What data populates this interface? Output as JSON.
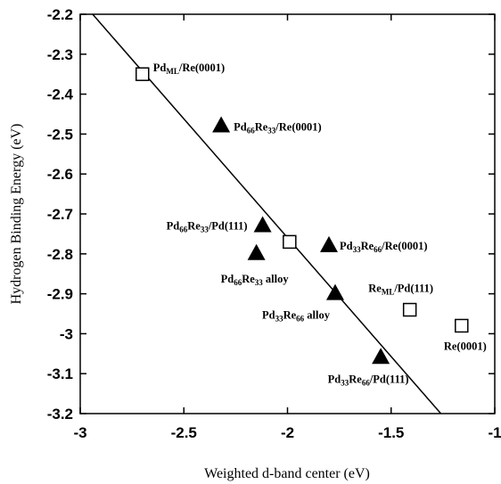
{
  "chart_data": {
    "type": "scatter",
    "xlabel": "Weighted d-band center (eV)",
    "ylabel": "Hydrogen Binding Energy (eV)",
    "xlim": [
      -3,
      -1
    ],
    "ylim": [
      -3.2,
      -2.2
    ],
    "xticks": [
      "-3",
      "-2.5",
      "-2",
      "-1.5",
      "-1"
    ],
    "yticks": [
      "-2.2",
      "-2.3",
      "-2.4",
      "-2.5",
      "-2.6",
      "-2.7",
      "-2.8",
      "-2.9",
      "-3",
      "-3.1",
      "-3.2"
    ],
    "grid": false,
    "fit_line": {
      "x": [
        -2.94,
        -1.26
      ],
      "y": [
        -2.2,
        -3.2
      ]
    },
    "series": [
      {
        "marker": "open-square",
        "points": [
          {
            "x": -2.7,
            "y": -2.35,
            "label": {
              "base": "Pd",
              "sub": "ML",
              "rest": "/Re(0001)"
            },
            "anchor": "start"
          },
          {
            "x": -1.99,
            "y": -2.77,
            "label": null
          },
          {
            "x": -1.41,
            "y": -2.94,
            "label": {
              "base": "Re",
              "sub": "ML",
              "rest": "/Pd(111)"
            },
            "anchor": "middle"
          },
          {
            "x": -1.16,
            "y": -2.98,
            "label": {
              "base": "Re(0001)",
              "sub": "",
              "rest": ""
            },
            "anchor": "middle"
          }
        ]
      },
      {
        "marker": "filled-triangle",
        "points": [
          {
            "x": -2.32,
            "y": -2.48,
            "label": {
              "base": "Pd",
              "sub": "66",
              "mid": "Re",
              "sub2": "33",
              "rest": "/Re(0001)"
            },
            "anchor": "start"
          },
          {
            "x": -2.12,
            "y": -2.73,
            "label": {
              "base": "Pd",
              "sub": "66",
              "mid": "Re",
              "sub2": "33",
              "rest": "/Pd(111)"
            },
            "anchor": "end"
          },
          {
            "x": -2.15,
            "y": -2.8,
            "label": {
              "base": "Pd",
              "sub": "66",
              "mid": "Re",
              "sub2": "33",
              "rest": " alloy"
            },
            "anchor": "middle"
          },
          {
            "x": -1.8,
            "y": -2.78,
            "label": {
              "base": "Pd",
              "sub": "33",
              "mid": "Re",
              "sub2": "66",
              "rest": "/Re(0001)"
            },
            "anchor": "start"
          },
          {
            "x": -1.77,
            "y": -2.9,
            "label": {
              "base": "Pd",
              "sub": "33",
              "mid": "Re",
              "sub2": "66",
              "rest": " alloy"
            },
            "anchor": "end"
          },
          {
            "x": -1.55,
            "y": -3.06,
            "label": {
              "base": "Pd",
              "sub": "33",
              "mid": "Re",
              "sub2": "66",
              "rest": "/Pd(111)"
            },
            "anchor": "middle"
          }
        ]
      }
    ]
  }
}
